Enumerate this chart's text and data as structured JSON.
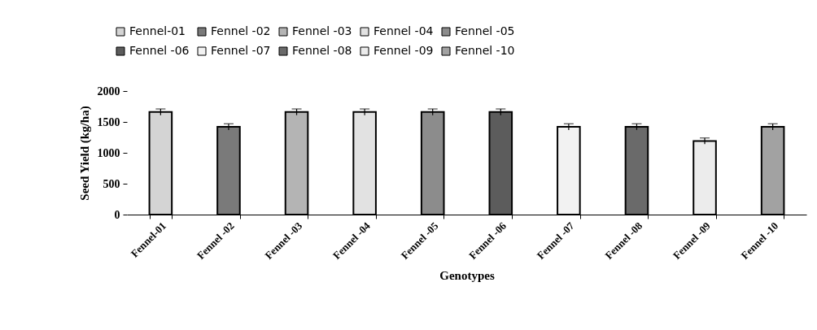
{
  "chart_data": {
    "type": "bar",
    "xlabel": "Genotypes",
    "ylabel": "Seed Yield (kg/ha)",
    "categories": [
      "Fennel-01",
      "Fennel -02",
      "Fennel -03",
      "Fennel -04",
      "Fennel -05",
      "Fennel -06",
      "Fennel -07",
      "Fennel -08",
      "Fennel -09",
      "Fennel -10"
    ],
    "series": [
      {
        "name": "Fennel-01",
        "color": "#d4d4d4",
        "values": [
          1660,
          null,
          null,
          null,
          null,
          null,
          null,
          null,
          null,
          null
        ],
        "errors": [
          50,
          null,
          null,
          null,
          null,
          null,
          null,
          null,
          null,
          null
        ]
      },
      {
        "name": "Fennel -02",
        "color": "#7a7a7a",
        "values": [
          null,
          1420,
          null,
          null,
          null,
          null,
          null,
          null,
          null,
          null
        ],
        "errors": [
          null,
          50,
          null,
          null,
          null,
          null,
          null,
          null,
          null,
          null
        ]
      },
      {
        "name": "Fennel -03",
        "color": "#b4b4b4",
        "values": [
          null,
          null,
          1660,
          null,
          null,
          null,
          null,
          null,
          null,
          null
        ],
        "errors": [
          null,
          null,
          50,
          null,
          null,
          null,
          null,
          null,
          null,
          null
        ]
      },
      {
        "name": "Fennel -04",
        "color": "#e2e2e2",
        "values": [
          null,
          null,
          null,
          1660,
          null,
          null,
          null,
          null,
          null,
          null
        ],
        "errors": [
          null,
          null,
          null,
          50,
          null,
          null,
          null,
          null,
          null,
          null
        ]
      },
      {
        "name": "Fennel -05",
        "color": "#8c8c8c",
        "values": [
          null,
          null,
          null,
          null,
          1660,
          null,
          null,
          null,
          null,
          null
        ],
        "errors": [
          null,
          null,
          null,
          null,
          50,
          null,
          null,
          null,
          null,
          null
        ]
      },
      {
        "name": "Fennel -06",
        "color": "#5c5c5c",
        "values": [
          null,
          null,
          null,
          null,
          null,
          1660,
          null,
          null,
          null,
          null
        ],
        "errors": [
          null,
          null,
          null,
          null,
          null,
          50,
          null,
          null,
          null,
          null
        ]
      },
      {
        "name": "Fennel -07",
        "color": "#f2f2f2",
        "values": [
          null,
          null,
          null,
          null,
          null,
          null,
          1420,
          null,
          null,
          null
        ],
        "errors": [
          null,
          null,
          null,
          null,
          null,
          null,
          50,
          null,
          null,
          null
        ]
      },
      {
        "name": "Fennel -08",
        "color": "#6a6a6a",
        "values": [
          null,
          null,
          null,
          null,
          null,
          null,
          null,
          1420,
          null,
          null
        ],
        "errors": [
          null,
          null,
          null,
          null,
          null,
          null,
          null,
          50,
          null,
          null
        ]
      },
      {
        "name": "Fennel -09",
        "color": "#ececec",
        "values": [
          null,
          null,
          null,
          null,
          null,
          null,
          null,
          null,
          1190,
          null
        ],
        "errors": [
          null,
          null,
          null,
          null,
          null,
          null,
          null,
          null,
          50,
          null
        ]
      },
      {
        "name": "Fennel -10",
        "color": "#a2a2a2",
        "values": [
          null,
          null,
          null,
          null,
          null,
          null,
          null,
          null,
          null,
          1420
        ],
        "errors": [
          null,
          null,
          null,
          null,
          null,
          null,
          null,
          null,
          null,
          50
        ]
      }
    ],
    "ylim": [
      0,
      2000
    ],
    "yticks": [
      0,
      500,
      1000,
      1500,
      2000
    ],
    "grid": false,
    "legend": "top"
  }
}
